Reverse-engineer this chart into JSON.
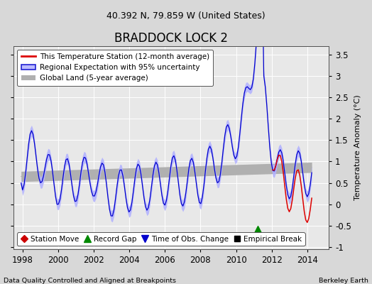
{
  "title": "BRADDOCK LOCK 2",
  "subtitle": "40.392 N, 79.859 W (United States)",
  "ylabel": "Temperature Anomaly (°C)",
  "xlabel_left": "Data Quality Controlled and Aligned at Breakpoints",
  "xlabel_right": "Berkeley Earth",
  "xlim": [
    1997.5,
    2015.2
  ],
  "ylim": [
    -1.05,
    3.7
  ],
  "yticks": [
    -1,
    -0.5,
    0,
    0.5,
    1,
    1.5,
    2,
    2.5,
    3,
    3.5
  ],
  "xticks": [
    1998,
    2000,
    2002,
    2004,
    2006,
    2008,
    2010,
    2012,
    2014
  ],
  "background_color": "#d8d8d8",
  "plot_bg_color": "#e8e8e8",
  "grid_color": "#ffffff",
  "uncertainty_color": "#b0b0ff",
  "regional_color": "#0000cc",
  "station_color": "#dd0000",
  "global_color": "#b0b0b0",
  "record_gap_marker_color": "#008800",
  "record_gap_x": 2011.2,
  "record_gap_y": -0.58,
  "figsize": [
    5.24,
    4.0
  ],
  "dpi": 100
}
